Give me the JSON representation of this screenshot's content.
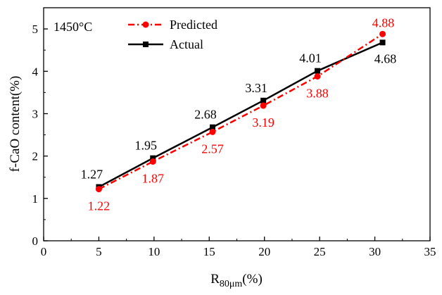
{
  "chart_data": {
    "type": "line",
    "annotation": "1450°C",
    "xlabel": "R",
    "xlabel_subscript": "80μm",
    "xlabel_suffix": "(%)",
    "ylabel": "f-CaO content(%)",
    "xlim": [
      0,
      35
    ],
    "ylim": [
      0,
      5.5
    ],
    "xticks": [
      0,
      5,
      10,
      15,
      20,
      25,
      30,
      35
    ],
    "yticks": [
      0,
      1,
      2,
      3,
      4,
      5
    ],
    "grid": false,
    "legend_position": "top-center",
    "series": [
      {
        "name": "Predicted",
        "color": "#ff0000",
        "line_style": "dash-dot",
        "marker": "circle",
        "x": [
          5.0,
          9.9,
          15.3,
          19.9,
          24.8,
          30.7
        ],
        "y": [
          1.22,
          1.87,
          2.57,
          3.19,
          3.88,
          4.88
        ],
        "labels": [
          "1.22",
          "1.87",
          "2.57",
          "3.19",
          "3.88",
          "4.88"
        ]
      },
      {
        "name": "Actual",
        "color": "#000000",
        "line_style": "solid",
        "marker": "square",
        "x": [
          5.0,
          9.9,
          15.3,
          19.9,
          24.8,
          30.7
        ],
        "y": [
          1.27,
          1.95,
          2.68,
          3.31,
          4.01,
          4.68
        ],
        "labels": [
          "1.27",
          "1.95",
          "2.68",
          "3.31",
          "4.01",
          "4.68"
        ]
      }
    ]
  }
}
